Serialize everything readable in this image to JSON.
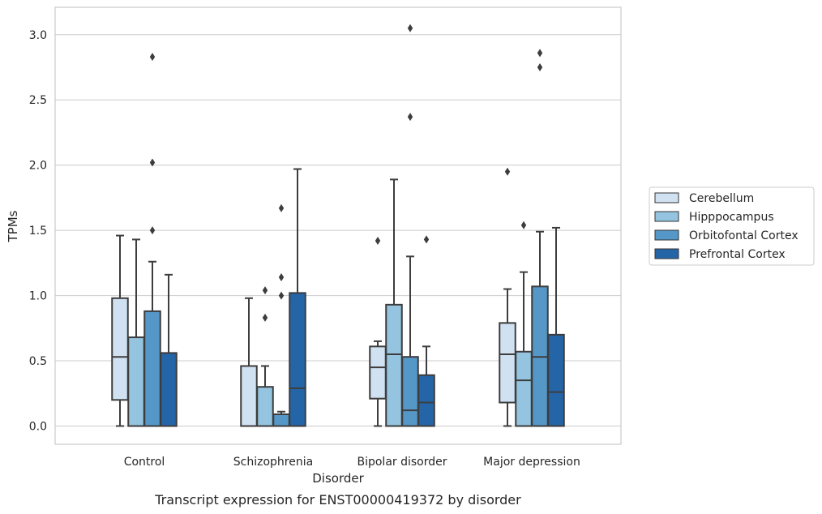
{
  "chart_data": {
    "type": "box",
    "title": "",
    "caption": "Transcript expression for ENST00000419372 by disorder",
    "xlabel": "Disorder",
    "ylabel": "TPMs",
    "ylim": [
      -0.14,
      3.21
    ],
    "yticks": [
      "0.0",
      "0.5",
      "1.0",
      "1.5",
      "2.0",
      "2.5",
      "3.0"
    ],
    "grid": "horizontal",
    "legend_position": "right",
    "categories": [
      "Control",
      "Schizophrenia",
      "Bipolar disorder",
      "Major depression"
    ],
    "series": [
      {
        "name": "Cerebellum",
        "color": "#d0e1f2",
        "boxes": [
          {
            "whisker_low": 0.0,
            "q1": 0.2,
            "median": 0.53,
            "q3": 0.98,
            "whisker_high": 1.46,
            "outliers": []
          },
          {
            "whisker_low": 0.0,
            "q1": 0.0,
            "median": 0.0,
            "q3": 0.46,
            "whisker_high": 0.98,
            "outliers": []
          },
          {
            "whisker_low": 0.0,
            "q1": 0.21,
            "median": 0.45,
            "q3": 0.61,
            "whisker_high": 0.65,
            "outliers": [
              1.42
            ]
          },
          {
            "whisker_low": 0.0,
            "q1": 0.18,
            "median": 0.55,
            "q3": 0.79,
            "whisker_high": 1.05,
            "outliers": [
              1.95
            ]
          }
        ]
      },
      {
        "name": "Hipppocampus",
        "color": "#94c4df",
        "boxes": [
          {
            "whisker_low": 0.0,
            "q1": 0.0,
            "median": 0.0,
            "q3": 0.68,
            "whisker_high": 1.43,
            "outliers": []
          },
          {
            "whisker_low": 0.0,
            "q1": 0.0,
            "median": 0.0,
            "q3": 0.3,
            "whisker_high": 0.46,
            "outliers": [
              0.83,
              1.04
            ]
          },
          {
            "whisker_low": 0.0,
            "q1": 0.0,
            "median": 0.55,
            "q3": 0.93,
            "whisker_high": 1.89,
            "outliers": []
          },
          {
            "whisker_low": 0.0,
            "q1": 0.0,
            "median": 0.35,
            "q3": 0.57,
            "whisker_high": 1.18,
            "outliers": [
              1.54
            ]
          }
        ]
      },
      {
        "name": "Orbitofontal Cortex",
        "color": "#5597c7",
        "boxes": [
          {
            "whisker_low": 0.0,
            "q1": 0.0,
            "median": 0.0,
            "q3": 0.88,
            "whisker_high": 1.26,
            "outliers": [
              1.5,
              2.02,
              2.83
            ]
          },
          {
            "whisker_low": 0.0,
            "q1": 0.0,
            "median": 0.0,
            "q3": 0.09,
            "whisker_high": 0.11,
            "outliers": [
              1.0,
              1.14,
              1.67
            ]
          },
          {
            "whisker_low": 0.0,
            "q1": 0.0,
            "median": 0.12,
            "q3": 0.53,
            "whisker_high": 1.3,
            "outliers": [
              2.37,
              3.05
            ]
          },
          {
            "whisker_low": 0.0,
            "q1": 0.0,
            "median": 0.53,
            "q3": 1.07,
            "whisker_high": 1.49,
            "outliers": [
              2.75,
              2.86
            ]
          }
        ]
      },
      {
        "name": "Prefrontal Cortex",
        "color": "#2465a8",
        "boxes": [
          {
            "whisker_low": 0.0,
            "q1": 0.0,
            "median": 0.0,
            "q3": 0.56,
            "whisker_high": 1.16,
            "outliers": []
          },
          {
            "whisker_low": 0.0,
            "q1": 0.0,
            "median": 0.29,
            "q3": 1.02,
            "whisker_high": 1.97,
            "outliers": []
          },
          {
            "whisker_low": 0.0,
            "q1": 0.0,
            "median": 0.18,
            "q3": 0.39,
            "whisker_high": 0.61,
            "outliers": [
              1.43
            ]
          },
          {
            "whisker_low": 0.0,
            "q1": 0.0,
            "median": 0.26,
            "q3": 0.7,
            "whisker_high": 1.52,
            "outliers": []
          }
        ]
      }
    ]
  }
}
